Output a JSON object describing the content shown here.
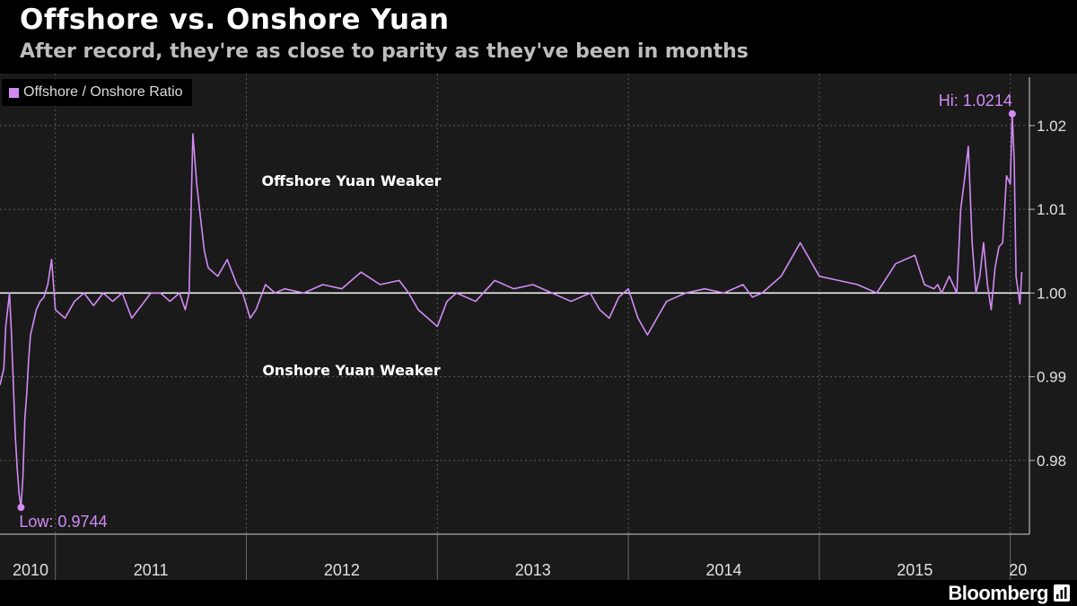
{
  "header": {
    "title": "Offshore vs. Onshore Yuan",
    "subtitle": "After record, they're as close to parity as they've been in months"
  },
  "footer": {
    "brand": "Bloomberg"
  },
  "colors": {
    "series": "#d28bf5",
    "parity": "#ffffff",
    "grid": "#5a5a5a",
    "plot_bg": "#1a1a1a"
  },
  "icons": {
    "logo": "bloomberg-terminal-icon"
  },
  "chart_data": {
    "type": "line",
    "legend": {
      "label": "Offshore / Onshore Ratio",
      "placement": "top-left"
    },
    "ylim": [
      0.9712,
      1.0262
    ],
    "yticks": [
      0.98,
      0.99,
      1.0,
      1.01,
      1.02
    ],
    "ytick_labels": [
      "0.98",
      "0.99",
      "1.00",
      "1.01",
      "1.02"
    ],
    "xlim": [
      2010.71,
      2016.1
    ],
    "year_labels": [
      {
        "label": "2010",
        "pos": 2010.87
      },
      {
        "label": "2011",
        "pos": 2011.5
      },
      {
        "label": "2012",
        "pos": 2012.5
      },
      {
        "label": "2013",
        "pos": 2013.5
      },
      {
        "label": "2014",
        "pos": 2014.5
      },
      {
        "label": "2015",
        "pos": 2015.5
      },
      {
        "label": "20",
        "pos": 2016.04
      }
    ],
    "year_boundaries": [
      2011.0,
      2012.0,
      2013.0,
      2014.0,
      2015.0,
      2016.0
    ],
    "reference_line": {
      "y": 1.0
    },
    "annotations": [
      {
        "text": "Offshore Yuan Weaker",
        "x": 2012.55,
        "y": 1.0128
      },
      {
        "text": "Onshore Yuan Weaker",
        "x": 2012.55,
        "y": 0.9902
      }
    ],
    "markers": [
      {
        "label": "Low: 0.9744",
        "x": 2010.82,
        "y": 0.9744
      },
      {
        "label": "Hi: 1.0214",
        "x": 2016.01,
        "y": 1.0214
      }
    ],
    "series": [
      {
        "name": "Offshore / Onshore Ratio",
        "x": [
          2010.71,
          2010.73,
          2010.74,
          2010.75,
          2010.76,
          2010.77,
          2010.78,
          2010.79,
          2010.8,
          2010.81,
          2010.82,
          2010.83,
          2010.84,
          2010.85,
          2010.86,
          2010.87,
          2010.88,
          2010.89,
          2010.9,
          2010.92,
          2010.94,
          2010.96,
          2010.98,
          2011.0,
          2011.05,
          2011.1,
          2011.15,
          2011.2,
          2011.25,
          2011.3,
          2011.35,
          2011.4,
          2011.45,
          2011.5,
          2011.55,
          2011.6,
          2011.65,
          2011.68,
          2011.7,
          2011.72,
          2011.74,
          2011.76,
          2011.78,
          2011.8,
          2011.85,
          2011.9,
          2011.95,
          2011.98,
          2012.02,
          2012.05,
          2012.1,
          2012.15,
          2012.2,
          2012.3,
          2012.4,
          2012.5,
          2012.6,
          2012.7,
          2012.8,
          2012.85,
          2012.9,
          2012.95,
          2013.0,
          2013.05,
          2013.1,
          2013.2,
          2013.3,
          2013.4,
          2013.5,
          2013.6,
          2013.7,
          2013.8,
          2013.85,
          2013.9,
          2013.95,
          2014.0,
          2014.05,
          2014.1,
          2014.15,
          2014.2,
          2014.3,
          2014.4,
          2014.5,
          2014.6,
          2014.65,
          2014.7,
          2014.8,
          2014.9,
          2015.0,
          2015.1,
          2015.2,
          2015.3,
          2015.4,
          2015.5,
          2015.55,
          2015.6,
          2015.62,
          2015.64,
          2015.66,
          2015.68,
          2015.7,
          2015.72,
          2015.74,
          2015.76,
          2015.78,
          2015.8,
          2015.82,
          2015.84,
          2015.86,
          2015.88,
          2015.9,
          2015.92,
          2015.94,
          2015.96,
          2015.98,
          2016.0,
          2016.01,
          2016.02,
          2016.03,
          2016.05,
          2016.06
        ],
        "y": [
          0.989,
          0.991,
          0.996,
          0.998,
          1.0,
          0.995,
          0.989,
          0.983,
          0.979,
          0.976,
          0.9744,
          0.978,
          0.985,
          0.988,
          0.992,
          0.995,
          0.996,
          0.997,
          0.998,
          0.999,
          0.9995,
          1.001,
          1.004,
          0.998,
          0.997,
          0.999,
          1.0,
          0.9985,
          1.0,
          0.999,
          1.0,
          0.997,
          0.9985,
          1.0,
          1.0,
          0.999,
          1.0,
          0.998,
          1.0,
          1.019,
          1.013,
          1.009,
          1.005,
          1.003,
          1.002,
          1.004,
          1.001,
          1.0,
          0.997,
          0.998,
          1.001,
          1.0,
          1.0005,
          1.0,
          1.001,
          1.0005,
          1.0025,
          1.001,
          1.0015,
          1.0,
          0.998,
          0.997,
          0.996,
          0.999,
          1.0,
          0.999,
          1.0015,
          1.0005,
          1.001,
          1.0,
          0.999,
          1.0,
          0.998,
          0.997,
          0.9995,
          1.0005,
          0.997,
          0.995,
          0.997,
          0.999,
          1.0,
          1.0005,
          1.0,
          1.001,
          0.9995,
          1.0,
          1.002,
          1.006,
          1.002,
          1.0015,
          1.001,
          1.0,
          1.0035,
          1.0045,
          1.001,
          1.0005,
          1.001,
          1.0,
          1.001,
          1.002,
          1.001,
          1.0,
          1.01,
          1.0135,
          1.0175,
          1.006,
          1.0,
          1.002,
          1.006,
          1.001,
          0.998,
          1.003,
          1.0055,
          1.006,
          1.014,
          1.013,
          1.0214,
          1.016,
          1.002,
          0.9987,
          1.0025
        ]
      }
    ]
  }
}
